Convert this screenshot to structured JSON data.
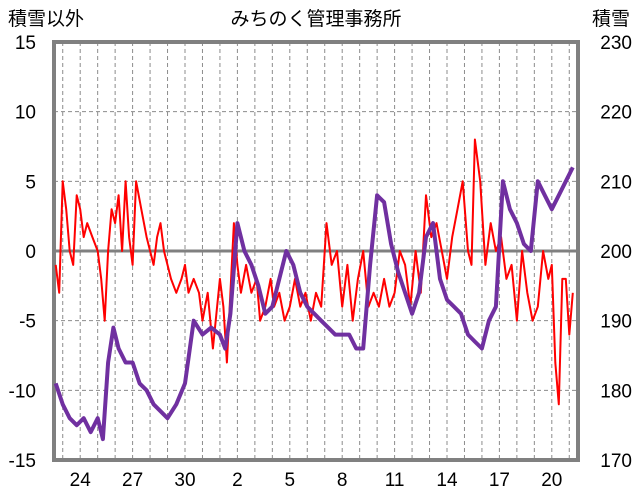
{
  "chart_data": {
    "type": "line",
    "title": "みちのく管理事務所",
    "left_axis_label": "積雪以外",
    "right_axis_label": "積雪",
    "left_axis": {
      "ylim": [
        -15,
        15
      ],
      "ticks": [
        15,
        10,
        5,
        0,
        -5,
        -10,
        -15
      ]
    },
    "right_axis": {
      "ylim": [
        170,
        230
      ],
      "ticks": [
        230,
        220,
        210,
        200,
        190,
        180,
        170
      ]
    },
    "x_axis": {
      "xlim": [
        22.5,
        52.5
      ],
      "tick_values": [
        24,
        27,
        30,
        33,
        36,
        39,
        42,
        45,
        48,
        51
      ],
      "tick_labels": [
        "24",
        "27",
        "30",
        "2",
        "5",
        "8",
        "11",
        "14",
        "17",
        "20"
      ],
      "minor_step": 1
    },
    "grid": true,
    "legend": "none",
    "series": [
      {
        "axis": "left",
        "color": "#ff0000",
        "x": [
          22.6,
          22.8,
          23.0,
          23.2,
          23.4,
          23.6,
          23.8,
          24.0,
          24.2,
          24.4,
          24.7,
          25.0,
          25.2,
          25.4,
          25.6,
          25.8,
          26.0,
          26.2,
          26.4,
          26.6,
          26.8,
          27.0,
          27.2,
          27.5,
          27.8,
          28.0,
          28.2,
          28.4,
          28.6,
          28.8,
          29.0,
          29.2,
          29.5,
          29.8,
          30.0,
          30.2,
          30.5,
          30.8,
          31.0,
          31.3,
          31.6,
          32.0,
          32.2,
          32.4,
          32.6,
          32.8,
          33.0,
          33.2,
          33.5,
          33.8,
          34.1,
          34.3,
          34.6,
          34.9,
          35.1,
          35.4,
          35.7,
          36.0,
          36.3,
          36.6,
          36.9,
          37.2,
          37.5,
          37.8,
          38.1,
          38.4,
          38.7,
          39.0,
          39.3,
          39.6,
          39.9,
          40.2,
          40.5,
          40.8,
          41.1,
          41.4,
          41.7,
          42.0,
          42.3,
          42.6,
          42.9,
          43.2,
          43.5,
          43.8,
          44.1,
          44.4,
          44.7,
          45.0,
          45.3,
          45.6,
          45.9,
          46.2,
          46.4,
          46.6,
          46.9,
          47.2,
          47.5,
          47.8,
          48.1,
          48.4,
          48.7,
          49.0,
          49.3,
          49.6,
          49.9,
          50.2,
          50.5,
          50.8,
          51.0,
          51.2,
          51.4,
          51.6,
          51.8,
          52.0,
          52.2
        ],
        "values": [
          -1,
          -3,
          5,
          3,
          0,
          -1,
          4,
          3,
          1,
          2,
          1,
          0,
          -2,
          -5,
          0,
          3,
          2,
          4,
          0,
          5,
          1,
          -1,
          5,
          3,
          1,
          0,
          -1,
          1,
          2,
          0,
          -1,
          -2,
          -3,
          -2,
          -1,
          -3,
          -2,
          -3,
          -5,
          -3,
          -7,
          -2,
          -4,
          -8,
          -3,
          2,
          -1,
          -3,
          -1,
          -3,
          -2,
          -5,
          -4,
          -2,
          -4,
          -3,
          -5,
          -4,
          -2,
          -4,
          -3,
          -5,
          -3,
          -4,
          2,
          -1,
          0,
          -4,
          -1,
          -5,
          -2,
          0,
          -4,
          -3,
          -4,
          -2,
          -4,
          -3,
          0,
          -1,
          -4,
          0,
          -3,
          4,
          1,
          2,
          0,
          -2,
          1,
          3,
          5,
          0,
          -1,
          8,
          5,
          -1,
          2,
          0,
          1,
          -2,
          -1,
          -5,
          0,
          -3,
          -5,
          -4,
          0,
          -2,
          -1,
          -8,
          -11,
          -2,
          -2,
          -6,
          -3
        ]
      },
      {
        "axis": "right",
        "color": "#7030a0",
        "x": [
          22.6,
          23.0,
          23.4,
          23.8,
          24.2,
          24.6,
          25.0,
          25.3,
          25.6,
          25.9,
          26.2,
          26.6,
          27.0,
          27.4,
          27.8,
          28.2,
          28.6,
          29.0,
          29.5,
          30.0,
          30.5,
          31.0,
          31.5,
          32.0,
          32.3,
          32.6,
          33.0,
          33.4,
          33.8,
          34.2,
          34.6,
          35.0,
          35.4,
          35.8,
          36.2,
          36.6,
          37.0,
          37.4,
          37.8,
          38.2,
          38.6,
          39.0,
          39.4,
          39.8,
          40.2,
          40.6,
          41.0,
          41.4,
          41.8,
          42.2,
          42.6,
          43.0,
          43.4,
          43.8,
          44.2,
          44.6,
          45.0,
          45.4,
          45.8,
          46.2,
          46.6,
          47.0,
          47.4,
          47.8,
          48.2,
          48.6,
          49.0,
          49.4,
          49.8,
          50.2,
          50.6,
          51.0,
          51.4,
          51.8,
          52.2
        ],
        "values": [
          181,
          178,
          176,
          175,
          176,
          174,
          176,
          173,
          184,
          189,
          186,
          184,
          184,
          181,
          180,
          178,
          177,
          176,
          178,
          181,
          190,
          188,
          189,
          188,
          186,
          191,
          204,
          200,
          198,
          195,
          191,
          192,
          196,
          200,
          198,
          194,
          192,
          191,
          190,
          189,
          188,
          188,
          188,
          186,
          186,
          198,
          208,
          207,
          201,
          197,
          194,
          191,
          194,
          202,
          204,
          196,
          193,
          192,
          191,
          188,
          187,
          186,
          190,
          192,
          210,
          206,
          204,
          201,
          200,
          210,
          208,
          206,
          208,
          210,
          212
        ]
      }
    ]
  }
}
